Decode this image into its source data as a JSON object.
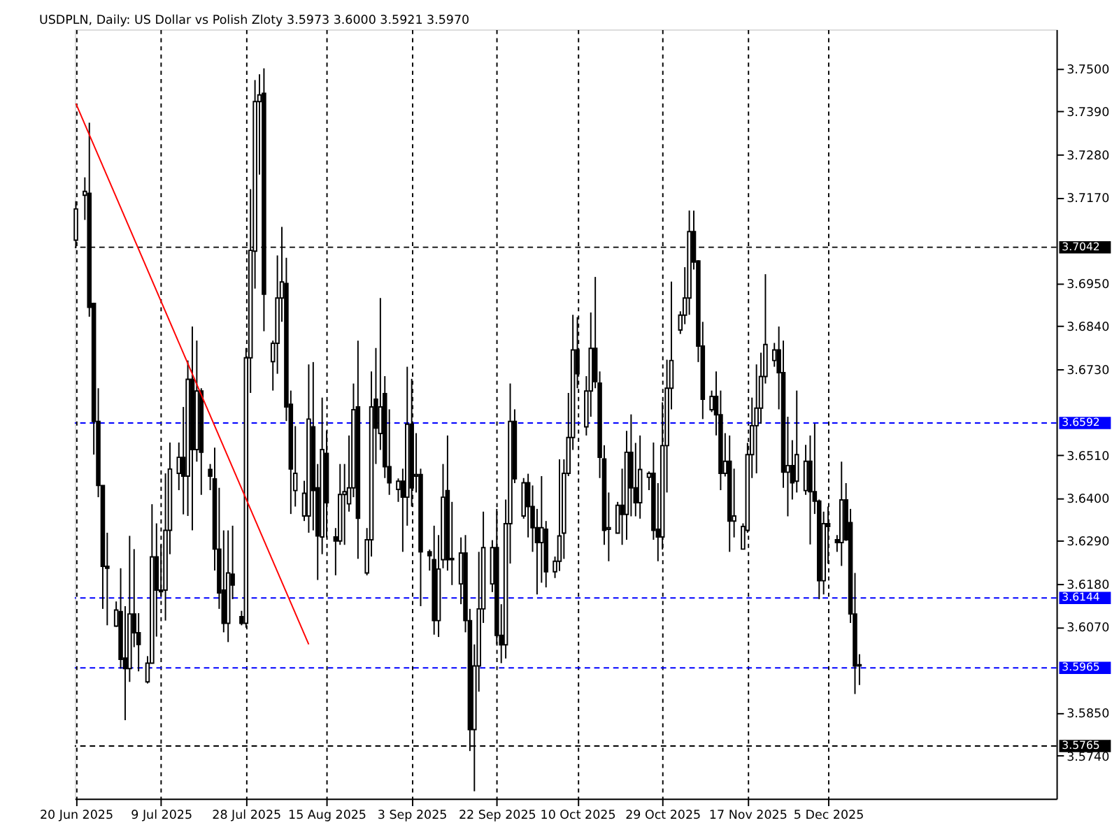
{
  "chart_data": {
    "type": "candlestick",
    "title": "USDPLN, Daily:  US Dollar vs Polish Zloty  3.5973 3.6000 3.5921 3.5970",
    "x": [
      "2025-06-20",
      "2025-06-22",
      "2025-06-23",
      "2025-06-24",
      "2025-06-25",
      "2025-06-26",
      "2025-06-27",
      "2025-06-29",
      "2025-06-30",
      "2025-07-01",
      "2025-07-02",
      "2025-07-03",
      "2025-07-04",
      "2025-07-06",
      "2025-07-07",
      "2025-07-08",
      "2025-07-09",
      "2025-07-10",
      "2025-07-11",
      "2025-07-13",
      "2025-07-14",
      "2025-07-15",
      "2025-07-16",
      "2025-07-17",
      "2025-07-18",
      "2025-07-20",
      "2025-07-21",
      "2025-07-22",
      "2025-07-23",
      "2025-07-24",
      "2025-07-25",
      "2025-07-27",
      "2025-07-28",
      "2025-07-29",
      "2025-07-30",
      "2025-07-31",
      "2025-08-01",
      "2025-08-03",
      "2025-08-04",
      "2025-08-05",
      "2025-08-06",
      "2025-08-07",
      "2025-08-08",
      "2025-08-10",
      "2025-08-11",
      "2025-08-12",
      "2025-08-13",
      "2025-08-14",
      "2025-08-15",
      "2025-08-17",
      "2025-08-18",
      "2025-08-19",
      "2025-08-20",
      "2025-08-21",
      "2025-08-22",
      "2025-08-24",
      "2025-08-25",
      "2025-08-26",
      "2025-08-27",
      "2025-08-28",
      "2025-08-29",
      "2025-08-31",
      "2025-09-01",
      "2025-09-02",
      "2025-09-03",
      "2025-09-04",
      "2025-09-05",
      "2025-09-07",
      "2025-09-08",
      "2025-09-09",
      "2025-09-10",
      "2025-09-11",
      "2025-09-12",
      "2025-09-14",
      "2025-09-15",
      "2025-09-16",
      "2025-09-17",
      "2025-09-18",
      "2025-09-19",
      "2025-09-21",
      "2025-09-22",
      "2025-09-23",
      "2025-09-24",
      "2025-09-25",
      "2025-09-26",
      "2025-09-28",
      "2025-09-29",
      "2025-09-30",
      "2025-10-01",
      "2025-10-02",
      "2025-10-03",
      "2025-10-05",
      "2025-10-06",
      "2025-10-07",
      "2025-10-08",
      "2025-10-09",
      "2025-10-10",
      "2025-10-12",
      "2025-10-13",
      "2025-10-14",
      "2025-10-15",
      "2025-10-16",
      "2025-10-17",
      "2025-10-19",
      "2025-10-20",
      "2025-10-21",
      "2025-10-22",
      "2025-10-23",
      "2025-10-24",
      "2025-10-26",
      "2025-10-27",
      "2025-10-28",
      "2025-10-29",
      "2025-10-30",
      "2025-10-31",
      "2025-11-02",
      "2025-11-03",
      "2025-11-04",
      "2025-11-05",
      "2025-11-06",
      "2025-11-07",
      "2025-11-09",
      "2025-11-10",
      "2025-11-11",
      "2025-11-12",
      "2025-11-13",
      "2025-11-14",
      "2025-11-16",
      "2025-11-17",
      "2025-11-18",
      "2025-11-19",
      "2025-11-20",
      "2025-11-21",
      "2025-11-23",
      "2025-11-24",
      "2025-11-25",
      "2025-11-26",
      "2025-11-27",
      "2025-11-28",
      "2025-11-30",
      "2025-12-01",
      "2025-12-02",
      "2025-12-03",
      "2025-12-04",
      "2025-12-05",
      "2025-12-07",
      "2025-12-08",
      "2025-12-09",
      "2025-12-10",
      "2025-12-11",
      "2025-12-12"
    ],
    "ohlc": [
      [
        3.706,
        3.716,
        3.704,
        3.714
      ],
      [
        3.7175,
        3.7221,
        3.7112,
        3.7185
      ],
      [
        3.718,
        3.7361,
        3.6864,
        3.6888
      ],
      [
        3.6898,
        3.69,
        3.6511,
        3.6596
      ],
      [
        3.6596,
        3.6681,
        3.6402,
        3.6432
      ],
      [
        3.6432,
        3.6432,
        3.6116,
        3.6225
      ],
      [
        3.6225,
        3.6311,
        3.6074,
        3.622
      ],
      [
        3.6072,
        3.6135,
        3.607,
        3.6113
      ],
      [
        3.6109,
        3.622,
        3.5963,
        3.5987
      ],
      [
        3.599,
        3.6123,
        3.5831,
        3.5963
      ],
      [
        3.5963,
        3.6303,
        3.5929,
        3.6103
      ],
      [
        3.6103,
        3.6269,
        3.6018,
        3.6055
      ],
      [
        3.6055,
        3.6105,
        3.5956,
        3.6025
      ],
      [
        3.5929,
        3.5995,
        3.5925,
        3.5977
      ],
      [
        3.5977,
        3.6384,
        3.5977,
        3.6249
      ],
      [
        3.6249,
        3.6335,
        3.6045,
        3.6164
      ],
      [
        3.6164,
        3.628,
        3.6147,
        3.616
      ],
      [
        3.6164,
        3.6463,
        3.6086,
        3.6317
      ],
      [
        3.6317,
        3.6542,
        3.6256,
        3.6474
      ],
      [
        3.6463,
        3.6542,
        3.642,
        3.6504
      ],
      [
        3.6504,
        3.6633,
        3.6358,
        3.6456
      ],
      [
        3.6456,
        3.6752,
        3.6354,
        3.6704
      ],
      [
        3.6704,
        3.6839,
        3.6317,
        3.6524
      ],
      [
        3.6524,
        3.6803,
        3.6493,
        3.6674
      ],
      [
        3.6674,
        3.6681,
        3.6408,
        3.6517
      ],
      [
        3.6473,
        3.6487,
        3.642,
        3.6456
      ],
      [
        3.6449,
        3.6529,
        3.6214,
        3.6269
      ],
      [
        3.6269,
        3.6426,
        3.6116,
        3.6157
      ],
      [
        3.6164,
        3.6317,
        3.6056,
        3.6079
      ],
      [
        3.6079,
        3.6317,
        3.6031,
        3.6208
      ],
      [
        3.6205,
        3.6329,
        3.6141,
        3.6177
      ],
      [
        3.6096,
        3.6111,
        3.6074,
        3.6079
      ],
      [
        3.6079,
        3.6784,
        3.6068,
        3.6759
      ],
      [
        3.6759,
        3.7191,
        3.6669,
        3.7034
      ],
      [
        3.7032,
        3.747,
        3.6936,
        3.7415
      ],
      [
        3.7415,
        3.7485,
        3.7228,
        3.7432
      ],
      [
        3.7436,
        3.75,
        3.6827,
        3.6922
      ],
      [
        3.6749,
        3.6803,
        3.6675,
        3.6796
      ],
      [
        3.6796,
        3.7021,
        3.6718,
        3.6912
      ],
      [
        3.6912,
        3.7094,
        3.6851,
        3.6953
      ],
      [
        3.6949,
        3.7015,
        3.6597,
        3.6633
      ],
      [
        3.664,
        3.6675,
        3.6359,
        3.6474
      ],
      [
        3.6419,
        3.6584,
        3.6378,
        3.6463
      ],
      [
        3.6354,
        3.6444,
        3.6341,
        3.6412
      ],
      [
        3.6354,
        3.6742,
        3.6311,
        3.6602
      ],
      [
        3.6582,
        3.6748,
        3.6317,
        3.6419
      ],
      [
        3.6426,
        3.6487,
        3.619,
        3.6303
      ],
      [
        3.63,
        3.6657,
        3.6256,
        3.6524
      ],
      [
        3.6514,
        3.6572,
        3.6299,
        3.6388
      ],
      [
        3.63,
        3.6323,
        3.6202,
        3.629
      ],
      [
        3.629,
        3.6487,
        3.628,
        3.6409
      ],
      [
        3.6409,
        3.6487,
        3.628,
        3.6416
      ],
      [
        3.6385,
        3.656,
        3.6365,
        3.6426
      ],
      [
        3.6426,
        3.6693,
        3.6402,
        3.6626
      ],
      [
        3.6633,
        3.6803,
        3.6244,
        3.6348
      ],
      [
        3.6208,
        3.6323,
        3.6202,
        3.6293
      ],
      [
        3.6293,
        3.6724,
        3.625,
        3.6633
      ],
      [
        3.6653,
        3.6784,
        3.6487,
        3.6579
      ],
      [
        3.6565,
        3.6912,
        3.6523,
        3.6633
      ],
      [
        3.6667,
        3.6712,
        3.6451,
        3.648
      ],
      [
        3.648,
        3.6627,
        3.6408,
        3.6439
      ],
      [
        3.6422,
        3.645,
        3.639,
        3.6443
      ],
      [
        3.6443,
        3.6475,
        3.6262,
        3.6402
      ],
      [
        3.6402,
        3.6736,
        3.6329,
        3.6589
      ],
      [
        3.6589,
        3.6705,
        3.6378,
        3.6426
      ],
      [
        3.6456,
        3.6566,
        3.6414,
        3.646
      ],
      [
        3.646,
        3.6475,
        3.6123,
        3.6262
      ],
      [
        3.6262,
        3.6268,
        3.6214,
        3.6252
      ],
      [
        3.6242,
        3.6329,
        3.605,
        3.6086
      ],
      [
        3.6086,
        3.6305,
        3.6044,
        3.6218
      ],
      [
        3.6242,
        3.6487,
        3.622,
        3.6402
      ],
      [
        3.6419,
        3.656,
        3.6214,
        3.6242
      ],
      [
        3.6242,
        3.639,
        3.6177,
        3.6245
      ],
      [
        3.618,
        3.6299,
        3.6128,
        3.6259
      ],
      [
        3.6259,
        3.6305,
        3.6056,
        3.6086
      ],
      [
        3.6086,
        3.6116,
        3.5752,
        3.5807
      ],
      [
        3.5807,
        3.6025,
        3.5649,
        3.597
      ],
      [
        3.597,
        3.6262,
        3.5904,
        3.6116
      ],
      [
        3.6116,
        3.6365,
        3.608,
        3.6273
      ],
      [
        3.618,
        3.6292,
        3.6159,
        3.6273
      ],
      [
        3.6273,
        3.6372,
        3.6025,
        3.6048
      ],
      [
        3.6048,
        3.6128,
        3.5977,
        3.6024
      ],
      [
        3.6024,
        3.6396,
        3.5989,
        3.6334
      ],
      [
        3.6334,
        3.6693,
        3.6232,
        3.6596
      ],
      [
        3.6596,
        3.6627,
        3.6438,
        3.6449
      ],
      [
        3.6354,
        3.6451,
        3.6347,
        3.6439
      ],
      [
        3.6439,
        3.6462,
        3.6299,
        3.6378
      ],
      [
        3.6378,
        3.6432,
        3.6262,
        3.6324
      ],
      [
        3.6324,
        3.6372,
        3.6153,
        3.6286
      ],
      [
        3.6286,
        3.6456,
        3.6183,
        3.6324
      ],
      [
        3.632,
        3.6341,
        3.6171,
        3.6211
      ],
      [
        3.6211,
        3.625,
        3.6195,
        3.6238
      ],
      [
        3.6238,
        3.6499,
        3.6213,
        3.6303
      ],
      [
        3.631,
        3.6499,
        3.6244,
        3.6463
      ],
      [
        3.6463,
        3.6669,
        3.6456,
        3.6555
      ],
      [
        3.6555,
        3.6869,
        3.6523,
        3.6779
      ],
      [
        3.6779,
        3.6863,
        3.6681,
        3.6718
      ],
      [
        3.6582,
        3.6712,
        3.656,
        3.6674
      ],
      [
        3.6674,
        3.6875,
        3.6608,
        3.6783
      ],
      [
        3.6783,
        3.6966,
        3.6681,
        3.6698
      ],
      [
        3.6694,
        3.6724,
        3.6451,
        3.6504
      ],
      [
        3.65,
        3.6535,
        3.628,
        3.6317
      ],
      [
        3.632,
        3.6414,
        3.6238,
        3.6324
      ],
      [
        3.631,
        3.639,
        3.6309,
        3.6381
      ],
      [
        3.6381,
        3.6475,
        3.628,
        3.6358
      ],
      [
        3.6358,
        3.6572,
        3.6293,
        3.6517
      ],
      [
        3.6517,
        3.6614,
        3.6353,
        3.6426
      ],
      [
        3.6426,
        3.6541,
        3.6353,
        3.6388
      ],
      [
        3.6388,
        3.656,
        3.6347,
        3.6473
      ],
      [
        3.6453,
        3.6468,
        3.642,
        3.6463
      ],
      [
        3.6463,
        3.6542,
        3.6293,
        3.6317
      ],
      [
        3.632,
        3.6438,
        3.6238,
        3.63
      ],
      [
        3.63,
        3.6645,
        3.6268,
        3.6534
      ],
      [
        3.6534,
        3.6754,
        3.6414,
        3.6681
      ],
      [
        3.6681,
        3.6954,
        3.6627,
        3.6752
      ],
      [
        3.683,
        3.6878,
        3.682,
        3.6868
      ],
      [
        3.6868,
        3.6991,
        3.6845,
        3.6912
      ],
      [
        3.6912,
        3.7136,
        3.6869,
        3.7082
      ],
      [
        3.7082,
        3.7136,
        3.6985,
        3.7004
      ],
      [
        3.7007,
        3.7009,
        3.6748,
        3.6789
      ],
      [
        3.6789,
        3.6851,
        3.6602,
        3.6653
      ],
      [
        3.6626,
        3.6675,
        3.662,
        3.666
      ],
      [
        3.666,
        3.6724,
        3.656,
        3.6613
      ],
      [
        3.6613,
        3.6675,
        3.642,
        3.6463
      ],
      [
        3.6463,
        3.6566,
        3.6455,
        3.6494
      ],
      [
        3.6494,
        3.656,
        3.6262,
        3.6341
      ],
      [
        3.6341,
        3.6475,
        3.6299,
        3.6354
      ],
      [
        3.6269,
        3.6335,
        3.6268,
        3.6327
      ],
      [
        3.6317,
        3.6541,
        3.6311,
        3.6511
      ],
      [
        3.6511,
        3.6657,
        3.6451,
        3.6585
      ],
      [
        3.6585,
        3.6742,
        3.6463,
        3.663
      ],
      [
        3.663,
        3.6772,
        3.659,
        3.6711
      ],
      [
        3.6711,
        3.6973,
        3.6693,
        3.6793
      ],
      [
        3.6752,
        3.6797,
        3.6736,
        3.6779
      ],
      [
        3.6779,
        3.6839,
        3.6627,
        3.6721
      ],
      [
        3.6721,
        3.6803,
        3.6426,
        3.6466
      ],
      [
        3.6466,
        3.6608,
        3.6353,
        3.6483
      ],
      [
        3.6483,
        3.6548,
        3.6396,
        3.6439
      ],
      [
        3.6443,
        3.6675,
        3.6414,
        3.6511
      ],
      [
        3.6419,
        3.6536,
        3.6408,
        3.6494
      ],
      [
        3.6494,
        3.656,
        3.6281,
        3.6416
      ],
      [
        3.6416,
        3.659,
        3.6359,
        3.6392
      ],
      [
        3.6392,
        3.6396,
        3.6141,
        3.6188
      ],
      [
        3.6188,
        3.6365,
        3.6153,
        3.6334
      ],
      [
        3.6334,
        3.6378,
        3.6232,
        3.6327
      ],
      [
        3.6293,
        3.6305,
        3.6262,
        3.6286
      ],
      [
        3.6286,
        3.6493,
        3.6226,
        3.6395
      ],
      [
        3.6395,
        3.6438,
        3.629,
        3.6293
      ],
      [
        3.6337,
        3.6372,
        3.608,
        3.6103
      ],
      [
        3.6103,
        3.6208,
        3.5898,
        3.597
      ],
      [
        3.5973,
        3.6,
        3.5921,
        3.597
      ]
    ],
    "series": [
      {
        "type": "line",
        "color": "#ff0000",
        "x": [
          "2025-06-20",
          "2025-08-11"
        ],
        "values": [
          3.741,
          3.6025
        ]
      }
    ],
    "xlim": [
      "2025-06-19T18:00",
      "2026-01-25"
    ],
    "xticks": [
      {
        "value": "2025-06-20",
        "label": "20 Jun 2025"
      },
      {
        "value": "2025-07-09",
        "label": "9 Jul 2025"
      },
      {
        "value": "2025-07-28",
        "label": "28 Jul 2025"
      },
      {
        "value": "2025-08-15",
        "label": "15 Aug 2025"
      },
      {
        "value": "2025-09-03",
        "label": "3 Sep 2025"
      },
      {
        "value": "2025-09-22",
        "label": "22 Sep 2025"
      },
      {
        "value": "2025-10-10",
        "label": "10 Oct 2025"
      },
      {
        "value": "2025-10-29",
        "label": "29 Oct 2025"
      },
      {
        "value": "2025-11-17",
        "label": "17 Nov 2025"
      },
      {
        "value": "2025-12-05",
        "label": "5 Dec 2025"
      }
    ],
    "ylim": [
      3.563,
      3.76
    ],
    "yticks": [
      {
        "value": 3.75,
        "label": "3.7500"
      },
      {
        "value": 3.739,
        "label": "3.7390"
      },
      {
        "value": 3.728,
        "label": "3.7280"
      },
      {
        "value": 3.717,
        "label": "3.7170"
      },
      {
        "value": 3.695,
        "label": "3.6950"
      },
      {
        "value": 3.684,
        "label": "3.6840"
      },
      {
        "value": 3.673,
        "label": "3.6730"
      },
      {
        "value": 3.651,
        "label": "3.6510"
      },
      {
        "value": 3.64,
        "label": "3.6400"
      },
      {
        "value": 3.629,
        "label": "3.6290"
      },
      {
        "value": 3.618,
        "label": "3.6180"
      },
      {
        "value": 3.607,
        "label": "3.6070"
      },
      {
        "value": 3.585,
        "label": "3.5850"
      },
      {
        "value": 3.574,
        "label": "3.5740"
      }
    ],
    "ref_lines": [
      {
        "axis": "y",
        "value": 3.7042,
        "label": "3.7042",
        "color": "#000000",
        "line_style": "dashed"
      },
      {
        "axis": "y",
        "value": 3.6592,
        "label": "3.6592",
        "color": "#0000ff",
        "line_style": "dashed"
      },
      {
        "axis": "y",
        "value": 3.6144,
        "label": "3.6144",
        "color": "#0000ff",
        "line_style": "dashed"
      },
      {
        "axis": "y",
        "value": 3.5965,
        "label": "3.5965",
        "color": "#0000ff",
        "line_style": "dashed"
      },
      {
        "axis": "y",
        "value": 3.5765,
        "label": "3.5765",
        "color": "#000000",
        "line_style": "dashed"
      }
    ],
    "grid": "x"
  }
}
